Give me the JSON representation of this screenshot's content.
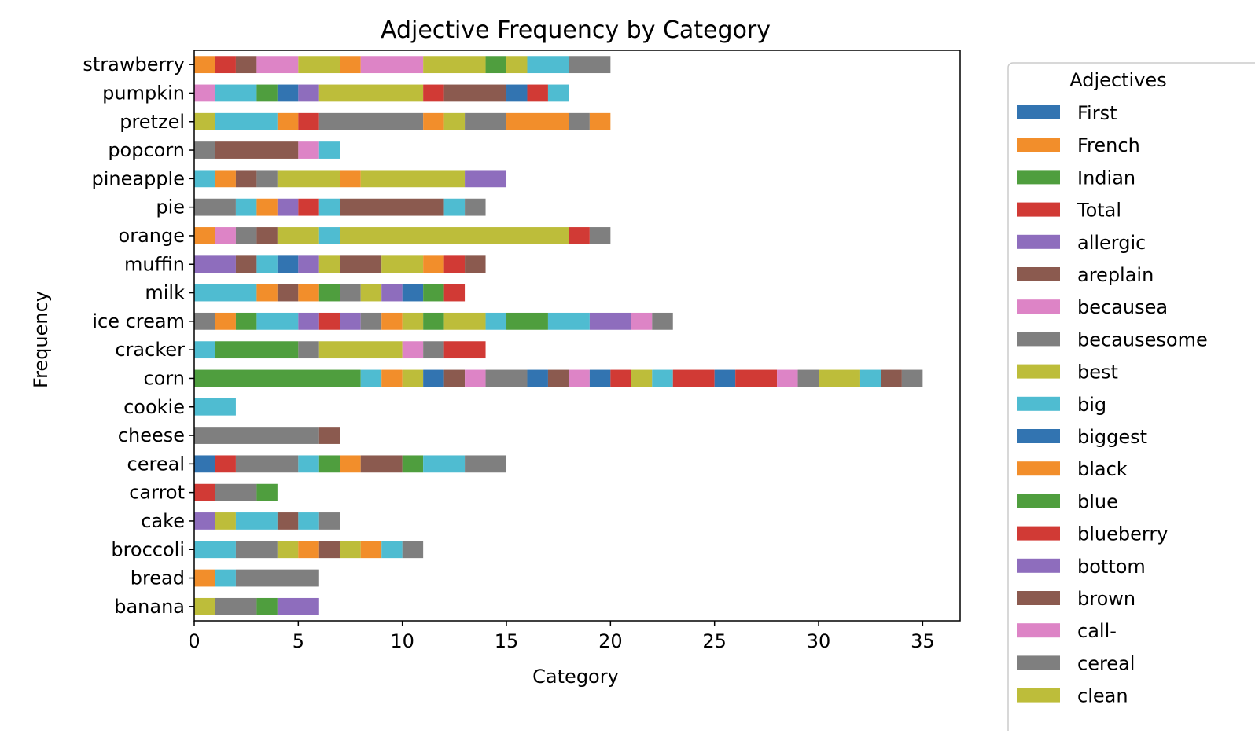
{
  "chart_data": {
    "type": "bar",
    "orientation": "horizontal",
    "stacked": true,
    "title": "Adjective Frequency by Category",
    "xlabel": "Category",
    "ylabel": "Frequency",
    "xlim": [
      0,
      36.8
    ],
    "xticks": [
      0,
      5,
      10,
      15,
      20,
      25,
      30,
      35
    ],
    "grid": false,
    "legend": {
      "title": "Adjectives",
      "placement": "outside-right",
      "entries": [
        {
          "name": "First",
          "color": "#3274b1"
        },
        {
          "name": "French",
          "color": "#f28e2b"
        },
        {
          "name": "Indian",
          "color": "#4f9e3e"
        },
        {
          "name": "Total",
          "color": "#d13a35"
        },
        {
          "name": "allergic",
          "color": "#8e6dbd"
        },
        {
          "name": "areplain",
          "color": "#8b5a4f"
        },
        {
          "name": "becausea",
          "color": "#dd84c6"
        },
        {
          "name": "becausesome",
          "color": "#7f7f7f"
        },
        {
          "name": "best",
          "color": "#bdbd3a"
        },
        {
          "name": "big",
          "color": "#4fbcd1"
        },
        {
          "name": "biggest",
          "color": "#3274b1"
        },
        {
          "name": "black",
          "color": "#f28e2b"
        },
        {
          "name": "blue",
          "color": "#4f9e3e"
        },
        {
          "name": "blueberry",
          "color": "#d13a35"
        },
        {
          "name": "bottom",
          "color": "#8e6dbd"
        },
        {
          "name": "brown",
          "color": "#8b5a4f"
        },
        {
          "name": "call-",
          "color": "#dd84c6"
        },
        {
          "name": "cereal",
          "color": "#7f7f7f"
        },
        {
          "name": "clean",
          "color": "#bdbd3a"
        }
      ]
    },
    "categories": [
      "strawberry",
      "pumpkin",
      "pretzel",
      "popcorn",
      "pineapple",
      "pie",
      "orange",
      "muffin",
      "milk",
      "ice cream",
      "cracker",
      "corn",
      "cookie",
      "cheese",
      "cereal",
      "carrot",
      "cake",
      "broccoli",
      "bread",
      "banana"
    ],
    "colors": {
      "O": "#f28e2b",
      "R": "#d13a35",
      "Br": "#8b5a4f",
      "P": "#dd84c6",
      "Y": "#bdbd3a",
      "G": "#4f9e3e",
      "C": "#4fbcd1",
      "Gr": "#7f7f7f",
      "B": "#3274b1",
      "V": "#8e6dbd"
    },
    "stacks": [
      [
        [
          "O",
          1
        ],
        [
          "R",
          1
        ],
        [
          "Br",
          1
        ],
        [
          "P",
          2
        ],
        [
          "Y",
          2
        ],
        [
          "O",
          1
        ],
        [
          "P",
          3
        ],
        [
          "Y",
          3
        ],
        [
          "G",
          1
        ],
        [
          "Y",
          1
        ],
        [
          "C",
          2
        ],
        [
          "Gr",
          2
        ]
      ],
      [
        [
          "P",
          1
        ],
        [
          "C",
          2
        ],
        [
          "G",
          1
        ],
        [
          "B",
          1
        ],
        [
          "V",
          1
        ],
        [
          "Y",
          5
        ],
        [
          "R",
          1
        ],
        [
          "Br",
          3
        ],
        [
          "B",
          1
        ],
        [
          "R",
          1
        ],
        [
          "C",
          1
        ]
      ],
      [
        [
          "Y",
          1
        ],
        [
          "C",
          3
        ],
        [
          "O",
          1
        ],
        [
          "R",
          1
        ],
        [
          "Gr",
          5
        ],
        [
          "O",
          1
        ],
        [
          "Y",
          1
        ],
        [
          "Gr",
          2
        ],
        [
          "O",
          3
        ],
        [
          "Gr",
          1
        ],
        [
          "O",
          1
        ]
      ],
      [
        [
          "Gr",
          1
        ],
        [
          "Br",
          4
        ],
        [
          "P",
          1
        ],
        [
          "C",
          1
        ]
      ],
      [
        [
          "C",
          1
        ],
        [
          "O",
          1
        ],
        [
          "Br",
          1
        ],
        [
          "Gr",
          1
        ],
        [
          "Y",
          3
        ],
        [
          "O",
          1
        ],
        [
          "Y",
          5
        ],
        [
          "V",
          2
        ]
      ],
      [
        [
          "Gr",
          2
        ],
        [
          "C",
          1
        ],
        [
          "O",
          1
        ],
        [
          "V",
          1
        ],
        [
          "R",
          1
        ],
        [
          "C",
          1
        ],
        [
          "Br",
          5
        ],
        [
          "C",
          1
        ],
        [
          "Gr",
          1
        ]
      ],
      [
        [
          "O",
          1
        ],
        [
          "P",
          1
        ],
        [
          "Gr",
          1
        ],
        [
          "Br",
          1
        ],
        [
          "Y",
          2
        ],
        [
          "C",
          1
        ],
        [
          "Y",
          11
        ],
        [
          "R",
          1
        ],
        [
          "Gr",
          1
        ]
      ],
      [
        [
          "V",
          2
        ],
        [
          "Br",
          1
        ],
        [
          "C",
          1
        ],
        [
          "B",
          1
        ],
        [
          "V",
          1
        ],
        [
          "Y",
          1
        ],
        [
          "Br",
          2
        ],
        [
          "Y",
          2
        ],
        [
          "O",
          1
        ],
        [
          "R",
          1
        ],
        [
          "Br",
          1
        ]
      ],
      [
        [
          "C",
          3
        ],
        [
          "O",
          1
        ],
        [
          "Br",
          1
        ],
        [
          "O",
          1
        ],
        [
          "G",
          1
        ],
        [
          "Gr",
          1
        ],
        [
          "Y",
          1
        ],
        [
          "V",
          1
        ],
        [
          "B",
          1
        ],
        [
          "G",
          1
        ],
        [
          "R",
          1
        ]
      ],
      [
        [
          "Gr",
          1
        ],
        [
          "O",
          1
        ],
        [
          "G",
          1
        ],
        [
          "C",
          2
        ],
        [
          "V",
          1
        ],
        [
          "R",
          1
        ],
        [
          "V",
          1
        ],
        [
          "Gr",
          1
        ],
        [
          "O",
          1
        ],
        [
          "Y",
          1
        ],
        [
          "G",
          1
        ],
        [
          "Y",
          2
        ],
        [
          "C",
          1
        ],
        [
          "G",
          2
        ],
        [
          "C",
          2
        ],
        [
          "V",
          2
        ],
        [
          "P",
          1
        ],
        [
          "Gr",
          1
        ]
      ],
      [
        [
          "C",
          1
        ],
        [
          "G",
          4
        ],
        [
          "Gr",
          1
        ],
        [
          "Y",
          4
        ],
        [
          "P",
          1
        ],
        [
          "Gr",
          1
        ],
        [
          "R",
          2
        ]
      ],
      [
        [
          "G",
          8
        ],
        [
          "C",
          1
        ],
        [
          "O",
          1
        ],
        [
          "Y",
          1
        ],
        [
          "B",
          1
        ],
        [
          "Br",
          1
        ],
        [
          "P",
          1
        ],
        [
          "Gr",
          2
        ],
        [
          "B",
          1
        ],
        [
          "Br",
          1
        ],
        [
          "P",
          1
        ],
        [
          "B",
          1
        ],
        [
          "R",
          1
        ],
        [
          "Y",
          1
        ],
        [
          "C",
          1
        ],
        [
          "R",
          2
        ],
        [
          "B",
          1
        ],
        [
          "R",
          2
        ],
        [
          "P",
          1
        ],
        [
          "Gr",
          1
        ],
        [
          "Y",
          2
        ],
        [
          "C",
          1
        ],
        [
          "Br",
          1
        ],
        [
          "Gr",
          1
        ]
      ],
      [
        [
          "C",
          2
        ]
      ],
      [
        [
          "Gr",
          6
        ],
        [
          "Br",
          1
        ]
      ],
      [
        [
          "B",
          1
        ],
        [
          "R",
          1
        ],
        [
          "Gr",
          3
        ],
        [
          "C",
          1
        ],
        [
          "G",
          1
        ],
        [
          "O",
          1
        ],
        [
          "Br",
          2
        ],
        [
          "G",
          1
        ],
        [
          "C",
          2
        ],
        [
          "Gr",
          2
        ]
      ],
      [
        [
          "R",
          1
        ],
        [
          "Gr",
          2
        ],
        [
          "G",
          1
        ]
      ],
      [
        [
          "V",
          1
        ],
        [
          "Y",
          1
        ],
        [
          "C",
          2
        ],
        [
          "Br",
          1
        ],
        [
          "C",
          1
        ],
        [
          "Gr",
          1
        ]
      ],
      [
        [
          "C",
          2
        ],
        [
          "Gr",
          2
        ],
        [
          "Y",
          1
        ],
        [
          "O",
          1
        ],
        [
          "Br",
          1
        ],
        [
          "Y",
          1
        ],
        [
          "O",
          1
        ],
        [
          "C",
          1
        ],
        [
          "Gr",
          1
        ]
      ],
      [
        [
          "O",
          1
        ],
        [
          "C",
          1
        ],
        [
          "Gr",
          4
        ]
      ],
      [
        [
          "Y",
          1
        ],
        [
          "Gr",
          2
        ],
        [
          "G",
          1
        ],
        [
          "V",
          2
        ]
      ]
    ]
  }
}
